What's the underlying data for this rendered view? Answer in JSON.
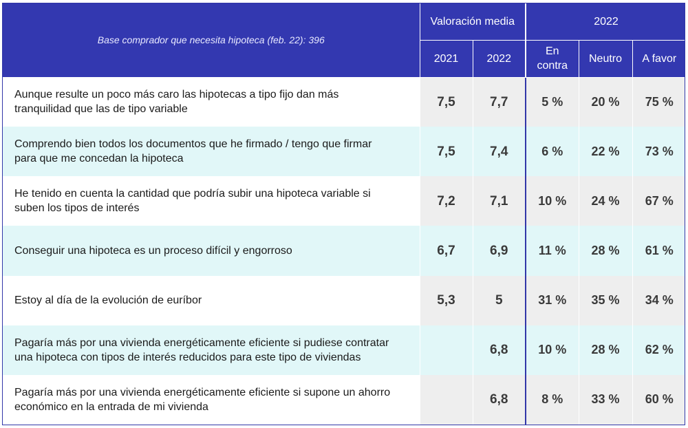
{
  "header": {
    "base_label": "Base comprador que necesita hipoteca (feb. 22): 396",
    "group_valoracion": "Valoración media",
    "group_2022": "2022",
    "col_2021": "2021",
    "col_2022": "2022",
    "col_en_contra_line1": "En",
    "col_en_contra_line2": "contra",
    "col_neutro": "Neutro",
    "col_a_favor": "A favor"
  },
  "rows": [
    {
      "line1": "Aunque resulte un poco más caro las hipotecas a tipo fijo dan más",
      "line2": "tranquilidad que las de tipo variable",
      "v2021": "7,5",
      "v2022": "7,7",
      "en_contra": "5 %",
      "neutro": "20 %",
      "a_favor": "75 %"
    },
    {
      "line1": "Comprendo bien todos los documentos que he firmado / tengo que firmar",
      "line2": "para que me concedan la hipoteca",
      "v2021": "7,5",
      "v2022": "7,4",
      "en_contra": "6 %",
      "neutro": "22 %",
      "a_favor": "73 %"
    },
    {
      "line1": "He tenido en cuenta la cantidad que podría subir una hipoteca variable si",
      "line2": "suben los tipos de interés",
      "v2021": "7,2",
      "v2022": "7,1",
      "en_contra": "10 %",
      "neutro": "24 %",
      "a_favor": "67 %"
    },
    {
      "line1": "Conseguir una hipoteca es un proceso difícil y engorroso",
      "line2": "",
      "v2021": "6,7",
      "v2022": "6,9",
      "en_contra": "11 %",
      "neutro": "28 %",
      "a_favor": "61 %"
    },
    {
      "line1": "Estoy al día de la evolución de euríbor",
      "line2": "",
      "v2021": "5,3",
      "v2022": "5",
      "en_contra": "31 %",
      "neutro": "35 %",
      "a_favor": "34 %"
    },
    {
      "line1": "Pagaría más por una vivienda energéticamente eficiente si pudiese contratar",
      "line2": "una hipoteca con tipos de interés reducidos para este tipo de viviendas",
      "v2021": "",
      "v2022": "6,8",
      "en_contra": "10 %",
      "neutro": "28 %",
      "a_favor": "62 %"
    },
    {
      "line1": "Pagaría más por una vivienda energéticamente eficiente si supone un ahorro",
      "line2": "económico en la entrada de mi vivienda",
      "v2021": "",
      "v2022": "6,8",
      "en_contra": "8 %",
      "neutro": "33 %",
      "a_favor": "60 %"
    }
  ],
  "chart_data": {
    "type": "table",
    "columns": [
      "",
      "2021",
      "2022",
      "En contra",
      "Neutro",
      "A favor"
    ],
    "column_groups": [
      {
        "label": "Valoración media",
        "columns": [
          "2021",
          "2022"
        ]
      },
      {
        "label": "2022",
        "columns": [
          "En contra",
          "Neutro",
          "A favor"
        ]
      }
    ],
    "rows": [
      [
        "Aunque resulte un poco más caro las hipotecas a tipo fijo dan más tranquilidad que las de tipo variable",
        7.5,
        7.7,
        5,
        20,
        75
      ],
      [
        "Comprendo bien todos los documentos que he firmado / tengo que firmar para que me concedan la hipoteca",
        7.5,
        7.4,
        6,
        22,
        73
      ],
      [
        "He tenido en cuenta la cantidad que podría subir una hipoteca variable si suben los tipos de interés",
        7.2,
        7.1,
        10,
        24,
        67
      ],
      [
        "Conseguir una hipoteca es un proceso difícil y engorroso",
        6.7,
        6.9,
        11,
        28,
        61
      ],
      [
        "Estoy al día de la evolución de euríbor",
        5.3,
        5,
        31,
        35,
        34
      ],
      [
        "Pagaría más por una vivienda energéticamente eficiente si pudiese contratar una hipoteca con tipos de interés reducidos para este tipo de viviendas",
        null,
        6.8,
        10,
        28,
        62
      ],
      [
        "Pagaría más por una vivienda energéticamente eficiente si supone un ahorro económico en la entrada de mi vivienda",
        null,
        6.8,
        8,
        33,
        60
      ]
    ],
    "colors": {
      "header_bg": "#3338b0",
      "row_alt_bg": "#e1f7f8",
      "value_cell_bg": "#eeeeee"
    }
  }
}
